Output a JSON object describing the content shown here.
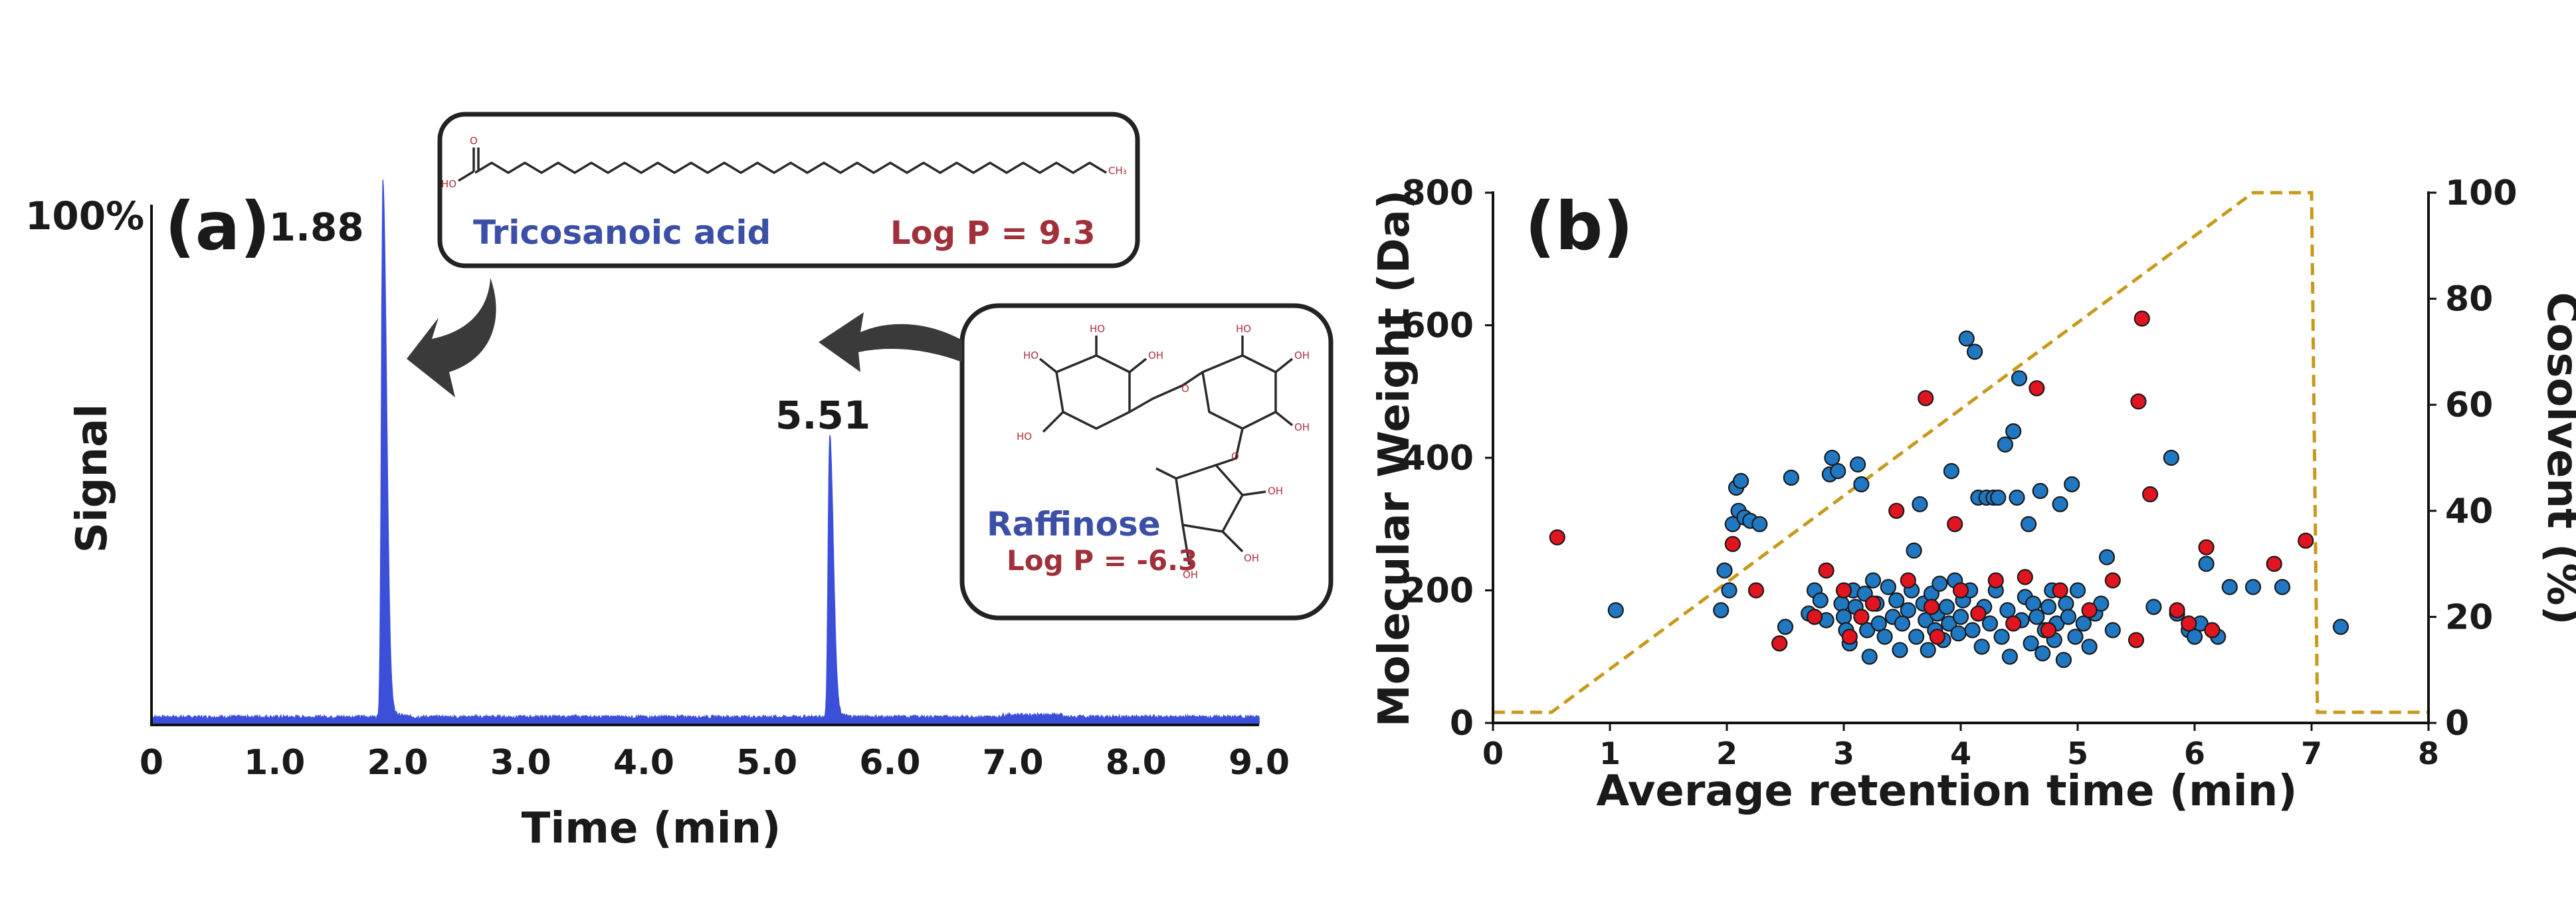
{
  "chart_data": [
    {
      "type": "line",
      "panel_label": "(a)",
      "xlabel": "Time (min)",
      "ylabel": "Signal",
      "ytop_label": "100%",
      "xlim": [
        0,
        9.0
      ],
      "x_ticks": [
        "0",
        "1.0",
        "2.0",
        "3.0",
        "4.0",
        "5.0",
        "6.0",
        "7.0",
        "8.0",
        "9.0"
      ],
      "series": [
        {
          "name": "chromatogram",
          "color": "#3b4fd8",
          "peaks": [
            {
              "time": 1.88,
              "height_pct": 100,
              "label": "1.88"
            },
            {
              "time": 5.51,
              "height_pct": 53,
              "label": "5.51"
            }
          ]
        }
      ],
      "annotations": [
        {
          "compound": "Tricosanoic acid",
          "logp": "Log P = 9.3",
          "chem_labels": [
            "O",
            "HO",
            "CH₃"
          ]
        },
        {
          "compound": "Raffinose",
          "logp": "Log P = -6.3",
          "chem_labels": [
            "HO",
            "OH",
            "O"
          ]
        }
      ]
    },
    {
      "type": "scatter",
      "panel_label": "(b)",
      "xlabel": "Average retention time (min)",
      "ylabel": "Molecular Weight (Da)",
      "y2label": "Cosolvent (%)",
      "xlim": [
        0,
        8
      ],
      "ylim": [
        0,
        800
      ],
      "y2lim": [
        0,
        100
      ],
      "x_ticks": [
        "0",
        "1",
        "2",
        "3",
        "4",
        "5",
        "6",
        "7",
        "8"
      ],
      "y_ticks": [
        "0",
        "200",
        "400",
        "600",
        "800"
      ],
      "y2_ticks": [
        "0",
        "20",
        "40",
        "60",
        "80",
        "100"
      ],
      "gradient": {
        "name": "Cosolvent gradient",
        "color": "#c79a1c",
        "x": [
          0,
          0.5,
          6.5,
          7.0,
          7.05,
          8.0
        ],
        "y": [
          2,
          2,
          100,
          100,
          2,
          2
        ]
      },
      "series": [
        {
          "name": "blue compounds",
          "color": "#1f78c1",
          "points": [
            [
              1.05,
              170
            ],
            [
              1.95,
              170
            ],
            [
              1.98,
              230
            ],
            [
              2.02,
              200
            ],
            [
              2.05,
              300
            ],
            [
              2.08,
              355
            ],
            [
              2.12,
              365
            ],
            [
              2.1,
              320
            ],
            [
              2.15,
              310
            ],
            [
              2.2,
              305
            ],
            [
              2.28,
              300
            ],
            [
              2.45,
              120
            ],
            [
              2.5,
              145
            ],
            [
              2.55,
              370
            ],
            [
              2.7,
              165
            ],
            [
              2.75,
              200
            ],
            [
              2.8,
              185
            ],
            [
              2.85,
              155
            ],
            [
              2.88,
              375
            ],
            [
              2.9,
              400
            ],
            [
              2.95,
              380
            ],
            [
              2.98,
              180
            ],
            [
              3.0,
              160
            ],
            [
              3.02,
              140
            ],
            [
              3.05,
              120
            ],
            [
              3.08,
              200
            ],
            [
              3.1,
              175
            ],
            [
              3.12,
              390
            ],
            [
              3.15,
              360
            ],
            [
              3.18,
              195
            ],
            [
              3.2,
              140
            ],
            [
              3.22,
              100
            ],
            [
              3.25,
              215
            ],
            [
              3.28,
              180
            ],
            [
              3.3,
              150
            ],
            [
              3.35,
              130
            ],
            [
              3.38,
              205
            ],
            [
              3.42,
              160
            ],
            [
              3.45,
              185
            ],
            [
              3.48,
              110
            ],
            [
              3.5,
              150
            ],
            [
              3.55,
              170
            ],
            [
              3.58,
              200
            ],
            [
              3.6,
              260
            ],
            [
              3.62,
              130
            ],
            [
              3.65,
              330
            ],
            [
              3.68,
              180
            ],
            [
              3.7,
              155
            ],
            [
              3.72,
              110
            ],
            [
              3.75,
              195
            ],
            [
              3.78,
              140
            ],
            [
              3.8,
              165
            ],
            [
              3.82,
              210
            ],
            [
              3.85,
              125
            ],
            [
              3.88,
              175
            ],
            [
              3.9,
              150
            ],
            [
              3.92,
              380
            ],
            [
              3.95,
              215
            ],
            [
              3.98,
              135
            ],
            [
              4.0,
              160
            ],
            [
              4.02,
              185
            ],
            [
              4.05,
              580
            ],
            [
              4.08,
              200
            ],
            [
              4.1,
              140
            ],
            [
              4.12,
              560
            ],
            [
              4.15,
              340
            ],
            [
              4.18,
              115
            ],
            [
              4.2,
              175
            ],
            [
              4.22,
              340
            ],
            [
              4.25,
              150
            ],
            [
              4.28,
              340
            ],
            [
              4.3,
              200
            ],
            [
              4.32,
              340
            ],
            [
              4.35,
              130
            ],
            [
              4.38,
              420
            ],
            [
              4.4,
              170
            ],
            [
              4.42,
              100
            ],
            [
              4.45,
              440
            ],
            [
              4.48,
              340
            ],
            [
              4.5,
              520
            ],
            [
              4.52,
              155
            ],
            [
              4.55,
              190
            ],
            [
              4.58,
              300
            ],
            [
              4.6,
              120
            ],
            [
              4.62,
              180
            ],
            [
              4.65,
              160
            ],
            [
              4.68,
              350
            ],
            [
              4.7,
              105
            ],
            [
              4.72,
              140
            ],
            [
              4.75,
              175
            ],
            [
              4.78,
              200
            ],
            [
              4.8,
              125
            ],
            [
              4.82,
              150
            ],
            [
              4.85,
              330
            ],
            [
              4.88,
              95
            ],
            [
              4.9,
              180
            ],
            [
              4.92,
              160
            ],
            [
              4.95,
              360
            ],
            [
              4.98,
              130
            ],
            [
              5.0,
              200
            ],
            [
              5.05,
              150
            ],
            [
              5.1,
              115
            ],
            [
              5.15,
              165
            ],
            [
              5.2,
              180
            ],
            [
              5.25,
              250
            ],
            [
              5.3,
              140
            ],
            [
              5.65,
              175
            ],
            [
              5.8,
              400
            ],
            [
              5.85,
              165
            ],
            [
              5.95,
              140
            ],
            [
              6.0,
              130
            ],
            [
              6.05,
              150
            ],
            [
              6.1,
              240
            ],
            [
              6.2,
              130
            ],
            [
              6.3,
              205
            ],
            [
              6.5,
              205
            ],
            [
              6.75,
              205
            ],
            [
              7.25,
              145
            ]
          ]
        },
        {
          "name": "red compounds",
          "color": "#e0151f",
          "points": [
            [
              0.55,
              280
            ],
            [
              2.05,
              270
            ],
            [
              2.25,
              200
            ],
            [
              2.45,
              120
            ],
            [
              2.75,
              160
            ],
            [
              2.85,
              230
            ],
            [
              3.0,
              200
            ],
            [
              3.05,
              130
            ],
            [
              3.15,
              160
            ],
            [
              3.25,
              180
            ],
            [
              3.45,
              320
            ],
            [
              3.55,
              215
            ],
            [
              3.7,
              490
            ],
            [
              3.75,
              175
            ],
            [
              3.8,
              130
            ],
            [
              3.95,
              300
            ],
            [
              4.0,
              200
            ],
            [
              4.15,
              165
            ],
            [
              4.3,
              215
            ],
            [
              4.45,
              150
            ],
            [
              4.55,
              220
            ],
            [
              4.65,
              505
            ],
            [
              4.75,
              140
            ],
            [
              4.85,
              200
            ],
            [
              5.1,
              170
            ],
            [
              5.3,
              215
            ],
            [
              5.5,
              125
            ],
            [
              5.52,
              485
            ],
            [
              5.55,
              610
            ],
            [
              5.62,
              345
            ],
            [
              5.85,
              170
            ],
            [
              5.95,
              150
            ],
            [
              6.1,
              265
            ],
            [
              6.15,
              140
            ],
            [
              6.68,
              240
            ],
            [
              6.95,
              275
            ]
          ]
        }
      ]
    }
  ]
}
